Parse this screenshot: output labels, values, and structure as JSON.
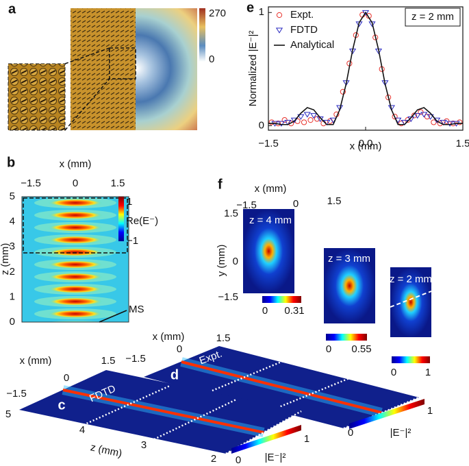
{
  "panels": {
    "a": {
      "label": "a",
      "colorbar_ticks": [
        "270",
        "0"
      ]
    },
    "b": {
      "label": "b",
      "x_label": "x (mm)",
      "x_ticks": [
        "−1.5",
        "0",
        "1.5"
      ],
      "z_label": "z (mm)",
      "z_ticks": [
        "0",
        "1",
        "2",
        "3",
        "4",
        "5"
      ],
      "colorbar_label": "Re(E⁻)",
      "colorbar_ticks": [
        "1",
        "−1"
      ],
      "annotation": "MS"
    },
    "c": {
      "label": "c",
      "tag": "FDTD",
      "x_label": "x (mm)",
      "x_ticks": [
        "−1.5",
        "0",
        "1.5"
      ],
      "z_label": "z (mm)",
      "z_ticks": [
        "5",
        "4",
        "3",
        "2"
      ],
      "colorbar_label": "|E⁻|²",
      "colorbar_ticks": [
        "0",
        "1"
      ]
    },
    "d": {
      "label": "d",
      "tag": "Expt.",
      "x_label": "x (mm)",
      "x_ticks": [
        "−1.5",
        "0",
        "1.5"
      ],
      "colorbar_label": "|E⁻|²",
      "colorbar_ticks": [
        "0",
        "1"
      ]
    },
    "f": {
      "label": "f",
      "x_label": "x (mm)",
      "x_ticks": [
        "−1.5",
        "0",
        "1.5"
      ],
      "y_label": "y (mm)",
      "y_ticks": [
        "1.5",
        "0",
        "−1.5"
      ],
      "slices": [
        {
          "title": "z = 4 mm",
          "colorbar_ticks": [
            "0",
            "0.31"
          ]
        },
        {
          "title": "z = 3 mm",
          "colorbar_ticks": [
            "0",
            "0.55"
          ]
        },
        {
          "title": "z = 2 mm",
          "colorbar_ticks": [
            "0",
            "1"
          ]
        }
      ]
    }
  },
  "chart_data": {
    "type": "line",
    "panel_label": "e",
    "annotation": "z = 2 mm",
    "x_label": "x (mm)",
    "y_label": "Normalized |E⁻|²",
    "xlim": [
      -1.5,
      1.5
    ],
    "xticks": [
      {
        "value": -1.5,
        "label": "−1.5"
      },
      {
        "value": 0,
        "label": "0.0"
      },
      1.5
    ],
    "ylim": [
      -0.04,
      1.05
    ],
    "yticks": [
      0,
      1
    ],
    "legend": "upper-left",
    "series": [
      {
        "name": "Expt.",
        "color": "#e8302a",
        "marker": "circle",
        "x": [
          -1.45,
          -1.35,
          -1.25,
          -1.15,
          -1.05,
          -0.95,
          -0.85,
          -0.75,
          -0.65,
          -0.55,
          -0.45,
          -0.35,
          -0.25,
          -0.15,
          -0.05,
          0.05,
          0.15,
          0.25,
          0.35,
          0.45,
          0.55,
          0.65,
          0.75,
          0.85,
          0.95,
          1.05,
          1.15,
          1.25,
          1.35,
          1.45
        ],
        "values": [
          0.03,
          0.02,
          0.05,
          0.02,
          0.04,
          0.03,
          0.05,
          0.06,
          0.02,
          0.04,
          0.1,
          0.3,
          0.55,
          0.8,
          0.98,
          0.97,
          0.78,
          0.5,
          0.25,
          0.08,
          0.02,
          0.05,
          0.09,
          0.12,
          0.08,
          0.03,
          0.02,
          0.04,
          0.02,
          0.03
        ]
      },
      {
        "name": "FDTD",
        "color": "#2a2ac0",
        "marker": "triangle",
        "x": [
          -1.4,
          -1.3,
          -1.2,
          -1.1,
          -1.0,
          -0.9,
          -0.8,
          -0.7,
          -0.6,
          -0.5,
          -0.4,
          -0.3,
          -0.2,
          -0.1,
          0,
          0.1,
          0.2,
          0.3,
          0.4,
          0.5,
          0.6,
          0.7,
          0.8,
          0.9,
          1.0,
          1.1,
          1.2,
          1.3,
          1.4
        ],
        "values": [
          0.02,
          0.02,
          0.03,
          0.05,
          0.08,
          0.1,
          0.09,
          0.06,
          0.03,
          0.05,
          0.16,
          0.38,
          0.66,
          0.9,
          1,
          0.9,
          0.66,
          0.38,
          0.16,
          0.05,
          0.03,
          0.06,
          0.09,
          0.1,
          0.08,
          0.05,
          0.03,
          0.02,
          0.02
        ]
      },
      {
        "name": "Analytical",
        "color": "#111111",
        "marker": "line",
        "x": [
          -1.5,
          -1.4,
          -1.3,
          -1.2,
          -1.1,
          -1.0,
          -0.9,
          -0.8,
          -0.7,
          -0.6,
          -0.5,
          -0.4,
          -0.3,
          -0.2,
          -0.1,
          0,
          0.1,
          0.2,
          0.3,
          0.4,
          0.5,
          0.6,
          0.7,
          0.8,
          0.9,
          1.0,
          1.1,
          1.2,
          1.3,
          1.4,
          1.5
        ],
        "values": [
          0.02,
          0.02,
          0.01,
          0.01,
          0.04,
          0.11,
          0.16,
          0.14,
          0.07,
          0.01,
          0.01,
          0.14,
          0.37,
          0.67,
          0.91,
          1,
          0.91,
          0.67,
          0.37,
          0.14,
          0.01,
          0.01,
          0.07,
          0.14,
          0.16,
          0.11,
          0.04,
          0.01,
          0.01,
          0.02,
          0.02
        ]
      }
    ]
  }
}
